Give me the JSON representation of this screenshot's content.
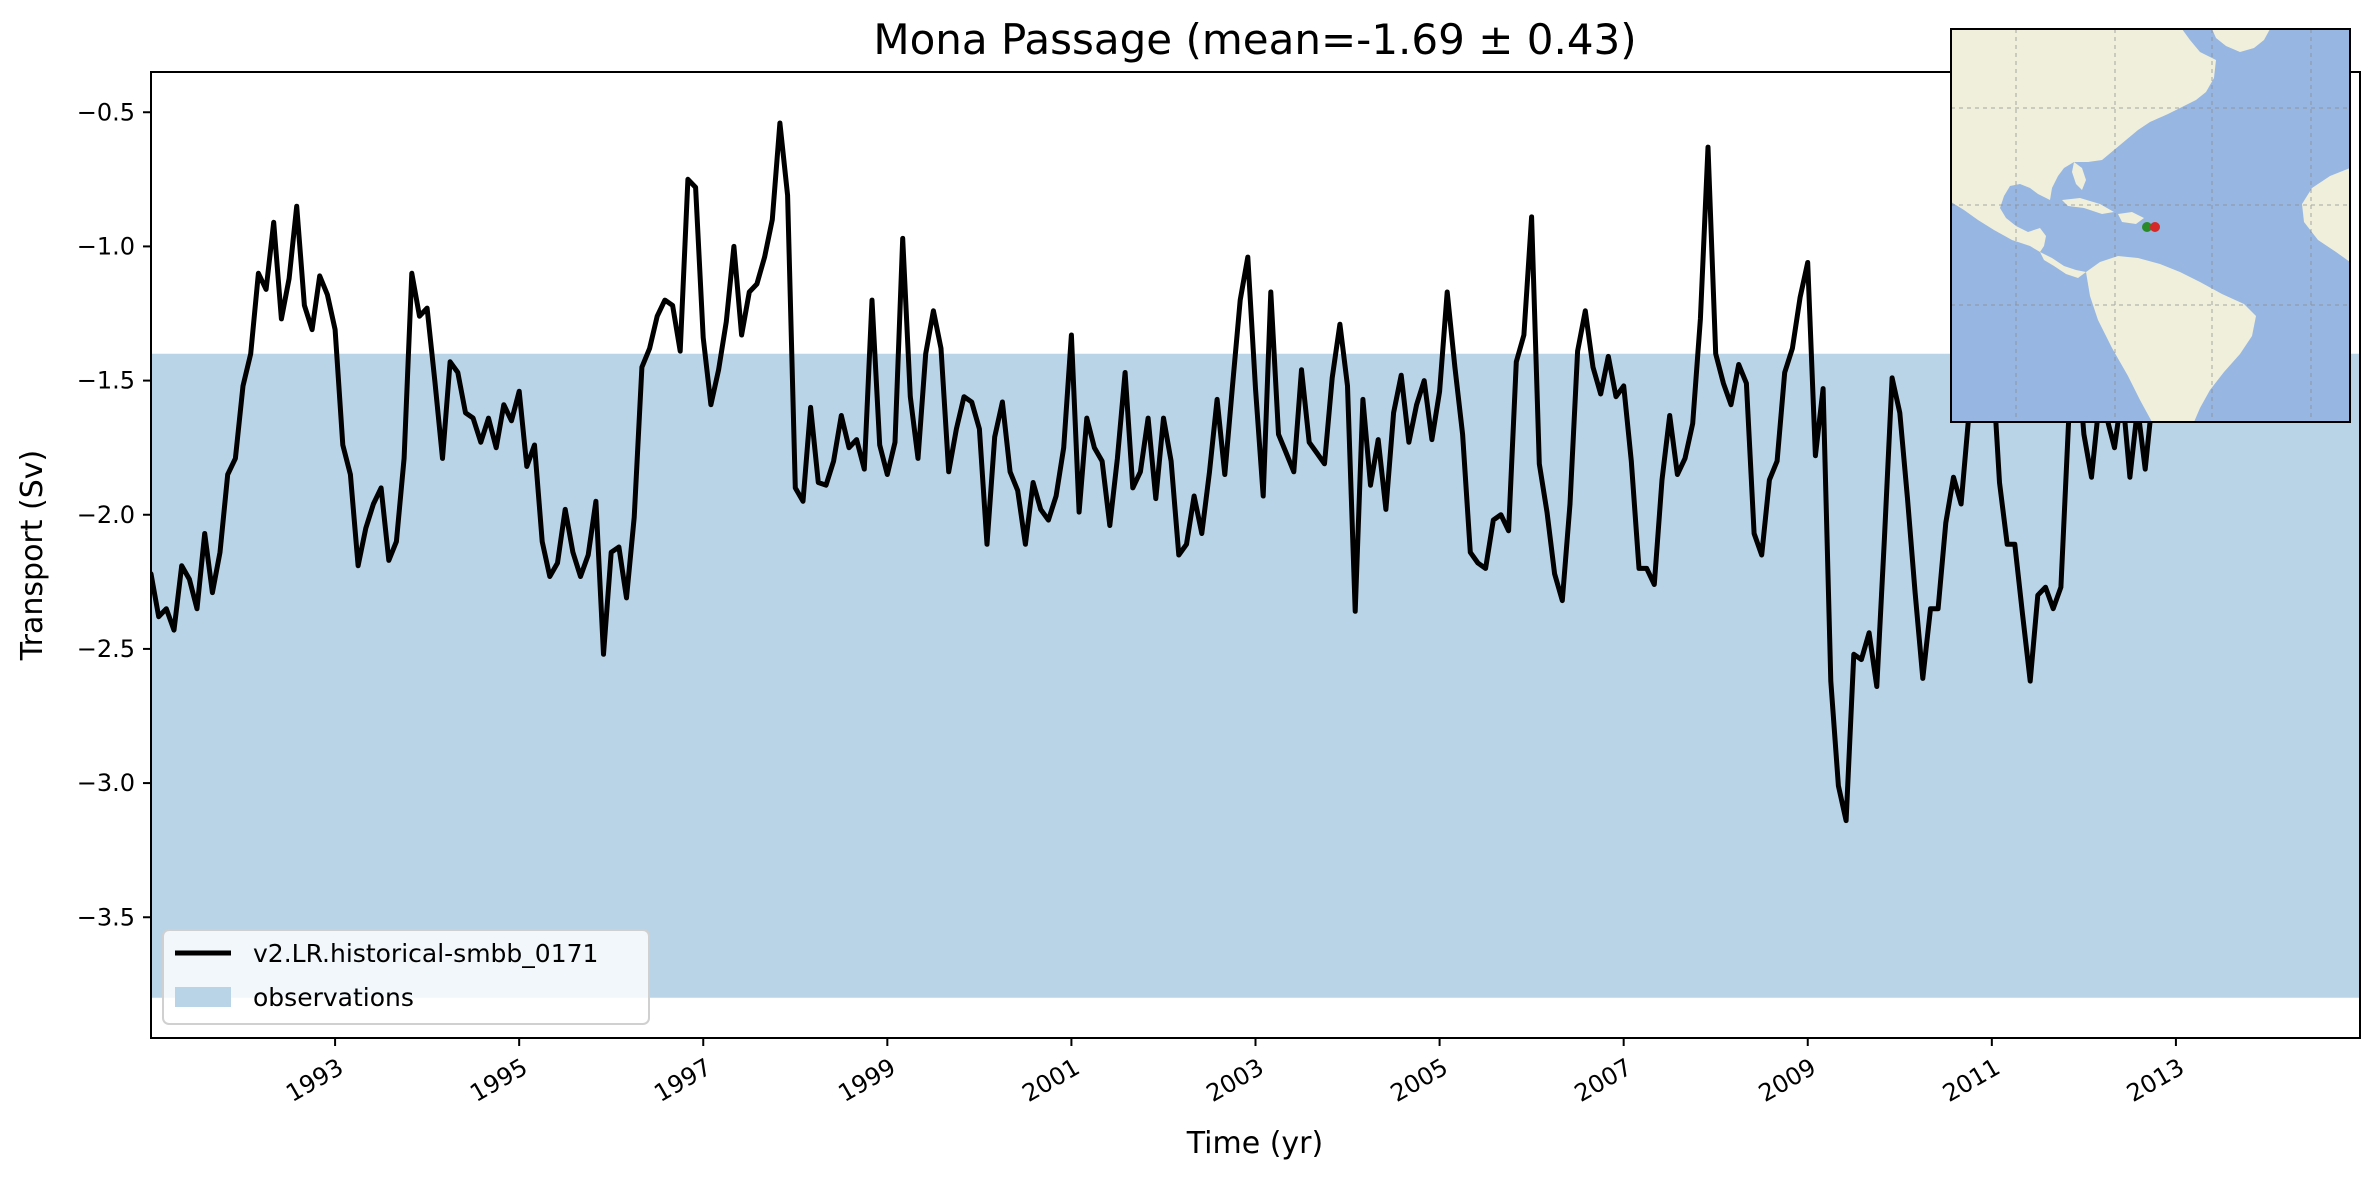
{
  "chart_data": {
    "type": "line",
    "title": "Mona Passage (mean=-1.69 ± 0.43)",
    "xlabel": "Time (yr)",
    "ylabel": "Transport (Sv)",
    "xlim": [
      1991.0,
      2015.0
    ],
    "ylim": [
      -3.95,
      -0.35
    ],
    "x_ticks": [
      1993,
      1995,
      1997,
      1999,
      2001,
      2003,
      2005,
      2007,
      2009,
      2011,
      2013
    ],
    "x_tick_labels": [
      "1993",
      "1995",
      "1997",
      "1999",
      "2001",
      "2003",
      "2005",
      "2007",
      "2009",
      "2011",
      "2013"
    ],
    "y_ticks": [
      -3.5,
      -3.0,
      -2.5,
      -2.0,
      -1.5,
      -1.0,
      -0.5
    ],
    "y_tick_labels": [
      "−3.5",
      "−3.0",
      "−2.5",
      "−2.0",
      "−1.5",
      "−1.0",
      "−0.5"
    ],
    "grid": false,
    "legend_position": "lower-left",
    "observations": {
      "name": "observations",
      "y_range": [
        -3.8,
        -1.4
      ],
      "color": "#b9d4e7"
    },
    "series": [
      {
        "name": "v2.LR.historical-smbb_0171",
        "color": "#000000",
        "x_start": 1991.0,
        "x_step": 0.083333,
        "values": [
          -2.22,
          -2.38,
          -2.35,
          -2.43,
          -2.19,
          -2.24,
          -2.35,
          -2.07,
          -2.29,
          -2.14,
          -1.85,
          -1.79,
          -1.52,
          -1.4,
          -1.1,
          -1.16,
          -0.91,
          -1.27,
          -1.12,
          -0.85,
          -1.22,
          -1.31,
          -1.11,
          -1.18,
          -1.31,
          -1.74,
          -1.85,
          -2.19,
          -2.05,
          -1.96,
          -1.9,
          -2.17,
          -2.1,
          -1.79,
          -1.1,
          -1.26,
          -1.23,
          -1.5,
          -1.79,
          -1.43,
          -1.47,
          -1.62,
          -1.64,
          -1.73,
          -1.64,
          -1.75,
          -1.59,
          -1.65,
          -1.54,
          -1.82,
          -1.74,
          -2.1,
          -2.23,
          -2.18,
          -1.98,
          -2.14,
          -2.23,
          -2.15,
          -1.95,
          -2.52,
          -2.14,
          -2.12,
          -2.31,
          -2.01,
          -1.45,
          -1.38,
          -1.26,
          -1.2,
          -1.22,
          -1.39,
          -0.75,
          -0.78,
          -1.34,
          -1.59,
          -1.46,
          -1.28,
          -1.0,
          -1.33,
          -1.17,
          -1.14,
          -1.04,
          -0.9,
          -0.54,
          -0.81,
          -1.9,
          -1.95,
          -1.6,
          -1.88,
          -1.89,
          -1.8,
          -1.63,
          -1.75,
          -1.72,
          -1.83,
          -1.2,
          -1.74,
          -1.85,
          -1.73,
          -0.97,
          -1.56,
          -1.79,
          -1.4,
          -1.24,
          -1.38,
          -1.84,
          -1.68,
          -1.56,
          -1.58,
          -1.68,
          -2.11,
          -1.71,
          -1.58,
          -1.84,
          -1.91,
          -2.11,
          -1.88,
          -1.98,
          -2.02,
          -1.93,
          -1.75,
          -1.33,
          -1.99,
          -1.64,
          -1.75,
          -1.8,
          -2.04,
          -1.79,
          -1.47,
          -1.9,
          -1.84,
          -1.64,
          -1.94,
          -1.64,
          -1.8,
          -2.15,
          -2.11,
          -1.93,
          -2.07,
          -1.84,
          -1.57,
          -1.85,
          -1.52,
          -1.2,
          -1.04,
          -1.53,
          -1.93,
          -1.17,
          -1.7,
          -1.77,
          -1.84,
          -1.46,
          -1.73,
          -1.77,
          -1.81,
          -1.49,
          -1.29,
          -1.52,
          -2.36,
          -1.57,
          -1.89,
          -1.72,
          -1.98,
          -1.62,
          -1.48,
          -1.73,
          -1.59,
          -1.5,
          -1.72,
          -1.54,
          -1.17,
          -1.45,
          -1.7,
          -2.14,
          -2.18,
          -2.2,
          -2.02,
          -2.0,
          -2.06,
          -1.43,
          -1.33,
          -0.89,
          -1.81,
          -1.99,
          -2.22,
          -2.32,
          -1.96,
          -1.39,
          -1.24,
          -1.45,
          -1.55,
          -1.41,
          -1.56,
          -1.52,
          -1.8,
          -2.2,
          -2.2,
          -2.26,
          -1.87,
          -1.63,
          -1.85,
          -1.79,
          -1.66,
          -1.27,
          -0.63,
          -1.4,
          -1.51,
          -1.59,
          -1.44,
          -1.51,
          -2.07,
          -2.15,
          -1.87,
          -1.8,
          -1.47,
          -1.38,
          -1.19,
          -1.06,
          -1.78,
          -1.53,
          -2.62,
          -3.01,
          -3.14,
          -2.52,
          -2.54,
          -2.44,
          -2.64,
          -2.09,
          -1.49,
          -1.62,
          -1.94,
          -2.29,
          -2.61,
          -2.35,
          -2.35,
          -2.03,
          -1.86,
          -1.96,
          -1.63,
          -1.59,
          -1.26,
          -1.4,
          -1.88,
          -2.11,
          -2.11,
          -2.37,
          -2.62,
          -2.3,
          -2.27,
          -2.35,
          -2.27,
          -1.66,
          -1.35,
          -1.7,
          -1.86,
          -1.58,
          -1.64,
          -1.75,
          -1.54,
          -1.86,
          -1.6,
          -1.83,
          -1.55,
          -1.42,
          -1.31,
          -1.25,
          -1.18,
          -0.66
        ]
      }
    ]
  },
  "inset_map": {
    "land_color": "#efefdb",
    "ocean_color": "#97b6e2",
    "markers": [
      {
        "color": "#2a8a2a"
      },
      {
        "color": "#d62728"
      }
    ]
  }
}
